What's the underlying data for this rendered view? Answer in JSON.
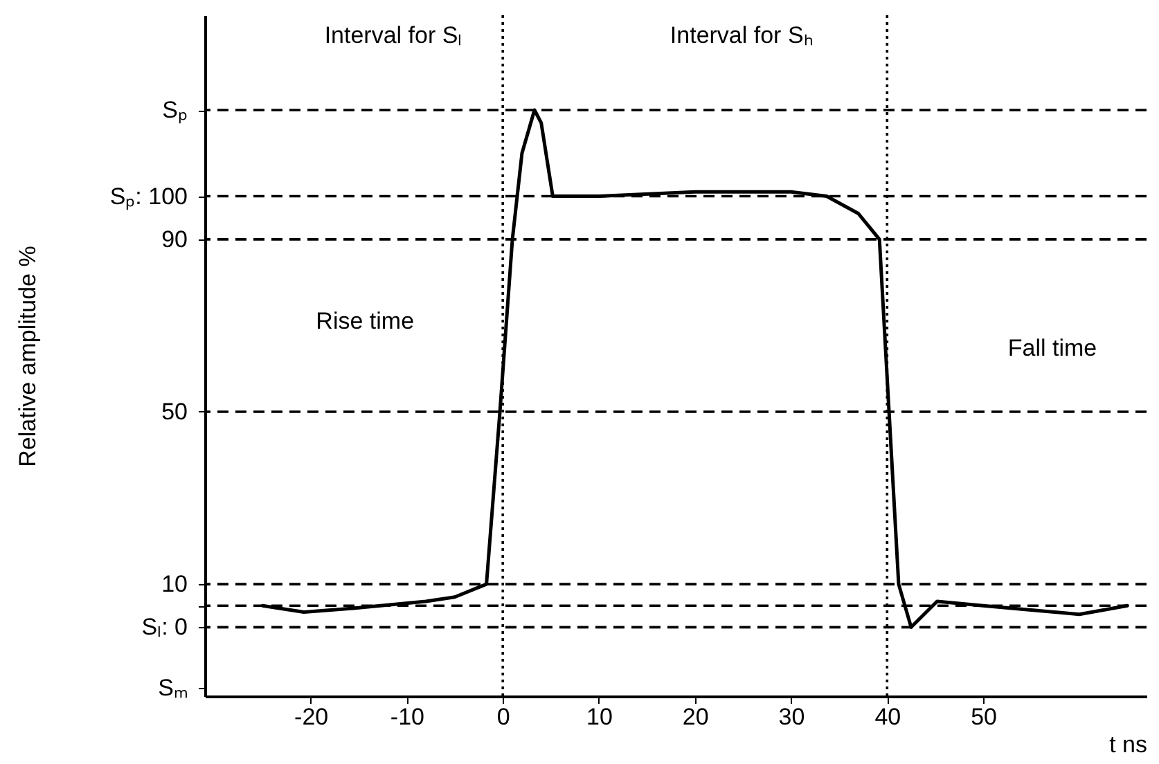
{
  "chart_data": {
    "type": "line",
    "xlabel": "t  ns",
    "ylabel": "Relative amplitude   %",
    "x": [
      -25,
      -20.7,
      -15,
      -8,
      -5,
      -1.7,
      -0.3,
      1,
      2,
      3.3,
      4,
      5.2,
      10,
      20,
      30,
      33.7,
      37,
      39.2,
      40.2,
      41.2,
      42.5,
      45.2,
      50,
      55,
      60,
      65
    ],
    "series": [
      {
        "color": "#000000",
        "values": [
          5,
          3.5,
          4.5,
          6,
          7,
          10,
          50,
          90,
          110,
          120,
          117,
          100,
          100,
          101,
          101,
          100,
          96,
          90,
          50,
          10,
          0,
          6,
          5,
          4,
          3,
          5
        ]
      }
    ],
    "xlim": [
      -31,
      67
    ],
    "xticks": [
      -20,
      -10,
      0,
      10,
      20,
      30,
      40,
      50
    ],
    "ylim": [
      -16,
      142
    ],
    "yticks": [
      {
        "value": -14,
        "label": "Sₘ"
      },
      {
        "value": 0,
        "label": "Sₗ: 0"
      },
      {
        "value": 5,
        "label": null
      },
      10,
      50,
      90,
      {
        "value": 100,
        "label": "Sₚ: 100"
      },
      {
        "value": 120,
        "label": "Sₚ"
      }
    ],
    "ref_lines": [
      {
        "axis": "y",
        "value": 120,
        "line_style": "dashed"
      },
      {
        "axis": "y",
        "value": 100,
        "line_style": "dashed"
      },
      {
        "axis": "y",
        "value": 90,
        "line_style": "dashed"
      },
      {
        "axis": "y",
        "value": 50,
        "line_style": "dashed"
      },
      {
        "axis": "y",
        "value": 10,
        "line_style": "dashed"
      },
      {
        "axis": "y",
        "value": 5,
        "line_style": "dashed"
      },
      {
        "axis": "y",
        "value": 0,
        "line_style": "dashed"
      },
      {
        "axis": "x",
        "value": 0,
        "line_style": "dotted"
      },
      {
        "axis": "x",
        "value": 40,
        "line_style": "dotted"
      }
    ],
    "annotations": [
      "Interval for Sₗ",
      "Interval for Sₕ",
      "Rise time",
      "Fall time"
    ],
    "grid": false,
    "marker": "none",
    "line_style": "solid"
  }
}
